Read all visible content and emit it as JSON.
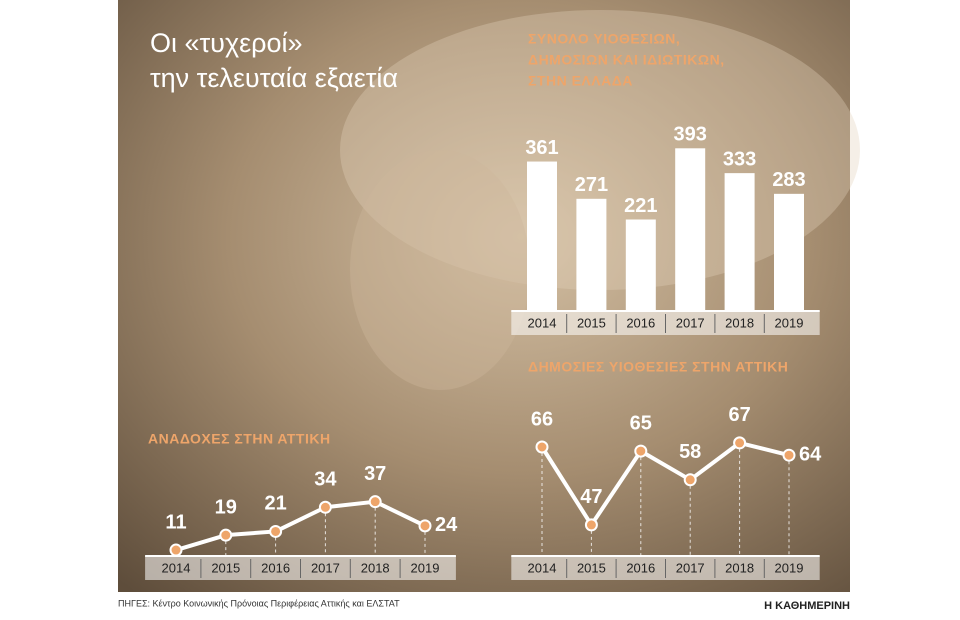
{
  "header": {
    "title": [
      "Οι «τυχεροί»",
      "την τελευταία εξαετία"
    ]
  },
  "chart_data": [
    {
      "type": "bar",
      "title": [
        "ΣΥΝΟΛΟ ΥΙΟΘΕΣΙΩΝ,",
        "ΔΗΜΟΣΙΩΝ ΚΑΙ ΙΔΙΩΤΙΚΩΝ,",
        "ΣΤΗΝ ΕΛΛΑΔΑ"
      ],
      "categories": [
        "2014",
        "2015",
        "2016",
        "2017",
        "2018",
        "2019"
      ],
      "values": [
        361,
        271,
        221,
        393,
        333,
        283
      ],
      "color": "#ffffff"
    },
    {
      "type": "line",
      "title": [
        "ΔΗΜΟΣΙΕΣ ΥΙΟΘΕΣΙΕΣ ΣΤΗΝ ΑΤΤΙΚΗ"
      ],
      "categories": [
        "2014",
        "2015",
        "2016",
        "2017",
        "2018",
        "2019"
      ],
      "values": [
        66,
        47,
        65,
        58,
        67,
        64
      ],
      "color": "#ffffff",
      "marker_color": "#eea56a"
    },
    {
      "type": "line",
      "title": [
        "ΑΝΑΔΟΧΕΣ ΣΤΗΝ ΑΤΤΙΚΗ"
      ],
      "categories": [
        "2014",
        "2015",
        "2016",
        "2017",
        "2018",
        "2019"
      ],
      "values": [
        11,
        19,
        21,
        34,
        37,
        24
      ],
      "color": "#ffffff",
      "marker_color": "#eea56a"
    }
  ],
  "footer": {
    "source": "ΠΗΓΕΣ: Κέντρο Κοινωνικής Πρόνοιας Περιφέρειας Αττικής και ΕΛΣΤΑΤ",
    "brand": "Η ΚΑΘΗΜΕΡΙΝΗ"
  }
}
